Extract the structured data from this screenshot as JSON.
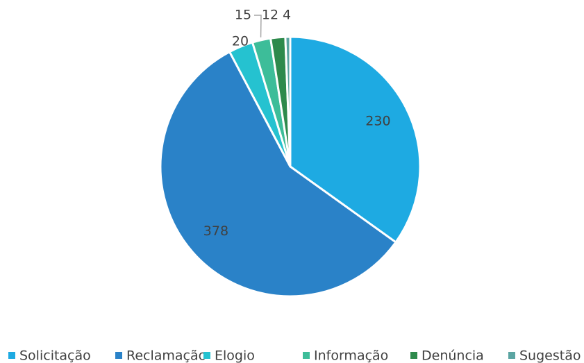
{
  "chart_data": {
    "type": "pie",
    "categories": [
      "Solicitação",
      "Reclamação",
      "Elogio",
      "Informação",
      "Denúncia",
      "Sugestão"
    ],
    "values": [
      230,
      378,
      20,
      15,
      12,
      4
    ],
    "colors": [
      "#1eaae2",
      "#2a82c8",
      "#25c2d0",
      "#3dbd99",
      "#2e8a4c",
      "#5ba5a2"
    ],
    "legend": "bottom"
  }
}
